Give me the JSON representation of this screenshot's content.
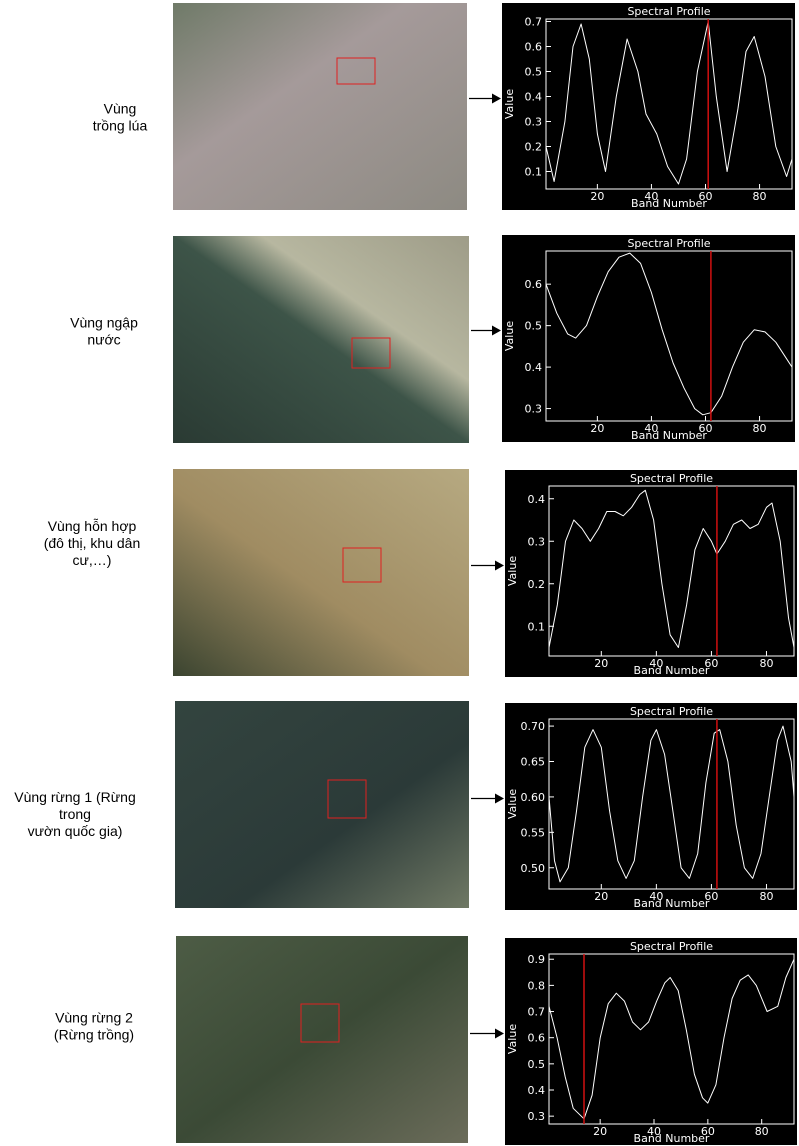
{
  "labels": [
    [
      "Vùng",
      "trồng lúa"
    ],
    [
      "Vùng  ngập",
      "nước"
    ],
    [
      "Vùng hỗn hợp",
      "(đô thị, khu dân",
      "cư,…)"
    ],
    [
      "Vùng rừng 1   (Rừng",
      "trong",
      "vườn quốc gia)"
    ],
    [
      "Vùng rừng 2",
      "(Rừng trồng)"
    ]
  ],
  "chart_data": [
    {
      "type": "line",
      "title": "Spectral Profile",
      "x_label": "Band Number",
      "y_label": "Value",
      "xlim": [
        1,
        92
      ],
      "xticks": [
        20,
        40,
        60,
        80
      ],
      "ylim": [
        0.03,
        0.71
      ],
      "yticks": [
        0.1,
        0.2,
        0.3,
        0.4,
        0.5,
        0.6,
        0.7
      ],
      "cursor": {
        "x": 61,
        "color": "#d01010"
      },
      "series": [
        {
          "color": "#ffffff",
          "x": [
            1,
            4,
            8,
            11,
            14,
            17,
            20,
            23,
            27,
            31,
            35,
            38,
            42,
            46,
            50,
            53,
            57,
            61,
            64,
            68,
            72,
            75,
            78,
            82,
            86,
            90,
            92
          ],
          "values": [
            0.2,
            0.06,
            0.3,
            0.6,
            0.69,
            0.55,
            0.25,
            0.1,
            0.4,
            0.63,
            0.5,
            0.33,
            0.25,
            0.12,
            0.05,
            0.15,
            0.5,
            0.7,
            0.4,
            0.1,
            0.35,
            0.58,
            0.64,
            0.48,
            0.2,
            0.08,
            0.15
          ]
        }
      ]
    },
    {
      "type": "line",
      "title": "Spectral Profile",
      "x_label": "Band Number",
      "y_label": "Value",
      "xlim": [
        1,
        92
      ],
      "xticks": [
        20,
        40,
        60,
        80
      ],
      "ylim": [
        0.27,
        0.68
      ],
      "yticks": [
        0.3,
        0.4,
        0.5,
        0.6
      ],
      "cursor": {
        "x": 62,
        "color": "#d01010"
      },
      "series": [
        {
          "color": "#ffffff",
          "x": [
            1,
            5,
            9,
            12,
            16,
            20,
            24,
            28,
            32,
            36,
            40,
            44,
            48,
            52,
            56,
            59,
            62,
            66,
            70,
            74,
            78,
            82,
            86,
            90,
            92
          ],
          "values": [
            0.6,
            0.53,
            0.48,
            0.47,
            0.5,
            0.57,
            0.63,
            0.665,
            0.675,
            0.65,
            0.58,
            0.49,
            0.41,
            0.35,
            0.3,
            0.285,
            0.29,
            0.33,
            0.4,
            0.46,
            0.49,
            0.485,
            0.46,
            0.42,
            0.4
          ]
        }
      ]
    },
    {
      "type": "line",
      "title": "Spectral Profile",
      "x_label": "Band Number",
      "y_label": "Value",
      "xlim": [
        1,
        90
      ],
      "xticks": [
        20,
        40,
        60,
        80
      ],
      "ylim": [
        0.03,
        0.43
      ],
      "yticks": [
        0.1,
        0.2,
        0.3,
        0.4
      ],
      "cursor": {
        "x": 62,
        "color": "#d01010"
      },
      "series": [
        {
          "color": "#ffffff",
          "x": [
            1,
            4,
            7,
            10,
            13,
            16,
            19,
            22,
            25,
            28,
            31,
            34,
            36,
            39,
            42,
            45,
            48,
            51,
            54,
            57,
            60,
            62,
            65,
            68,
            71,
            74,
            77,
            80,
            82,
            85,
            88,
            90
          ],
          "values": [
            0.05,
            0.15,
            0.3,
            0.35,
            0.33,
            0.3,
            0.33,
            0.37,
            0.37,
            0.36,
            0.38,
            0.41,
            0.42,
            0.35,
            0.2,
            0.08,
            0.05,
            0.15,
            0.28,
            0.33,
            0.3,
            0.27,
            0.3,
            0.34,
            0.35,
            0.33,
            0.34,
            0.38,
            0.39,
            0.3,
            0.12,
            0.05
          ]
        }
      ]
    },
    {
      "type": "line",
      "title": "Spectral Profile",
      "x_label": "Band Number",
      "y_label": "Value",
      "xlim": [
        1,
        90
      ],
      "xticks": [
        20,
        40,
        60,
        80
      ],
      "ylim": [
        0.47,
        0.71
      ],
      "yticks": [
        {
          "value": 0.5,
          "label": "0.50"
        },
        0.55,
        {
          "value": 0.6,
          "label": "0.60"
        },
        0.65,
        {
          "value": 0.7,
          "label": "0.70"
        }
      ],
      "cursor": {
        "x": 62,
        "color": "#d01010"
      },
      "series": [
        {
          "color": "#ffffff",
          "x": [
            1,
            3,
            5,
            8,
            11,
            14,
            17,
            20,
            23,
            26,
            29,
            32,
            35,
            38,
            40,
            43,
            46,
            49,
            52,
            55,
            58,
            61,
            63,
            66,
            69,
            72,
            75,
            78,
            81,
            84,
            86,
            89,
            90
          ],
          "values": [
            0.6,
            0.51,
            0.48,
            0.5,
            0.58,
            0.67,
            0.695,
            0.67,
            0.58,
            0.51,
            0.485,
            0.51,
            0.6,
            0.68,
            0.695,
            0.66,
            0.58,
            0.5,
            0.485,
            0.52,
            0.62,
            0.69,
            0.695,
            0.65,
            0.56,
            0.5,
            0.485,
            0.52,
            0.6,
            0.68,
            0.7,
            0.65,
            0.6
          ]
        }
      ]
    },
    {
      "type": "line",
      "title": "Spectral Profile",
      "x_label": "Band Number",
      "y_label": "Value",
      "xlim": [
        1,
        92
      ],
      "xticks": [
        20,
        40,
        60,
        80
      ],
      "ylim": [
        0.27,
        0.92
      ],
      "yticks": [
        0.3,
        0.4,
        0.5,
        0.6,
        0.7,
        0.8,
        0.9
      ],
      "cursor": {
        "x": 14,
        "color": "#d01010"
      },
      "series": [
        {
          "color": "#ffffff",
          "x": [
            1,
            4,
            7,
            10,
            14,
            17,
            20,
            23,
            26,
            29,
            32,
            35,
            38,
            41,
            44,
            46,
            49,
            52,
            55,
            58,
            60,
            63,
            66,
            69,
            72,
            75,
            78,
            82,
            86,
            89,
            92
          ],
          "values": [
            0.72,
            0.6,
            0.45,
            0.33,
            0.29,
            0.38,
            0.6,
            0.73,
            0.77,
            0.74,
            0.66,
            0.63,
            0.66,
            0.74,
            0.81,
            0.83,
            0.78,
            0.63,
            0.46,
            0.37,
            0.35,
            0.42,
            0.6,
            0.75,
            0.82,
            0.84,
            0.8,
            0.7,
            0.72,
            0.83,
            0.9
          ]
        }
      ]
    }
  ]
}
